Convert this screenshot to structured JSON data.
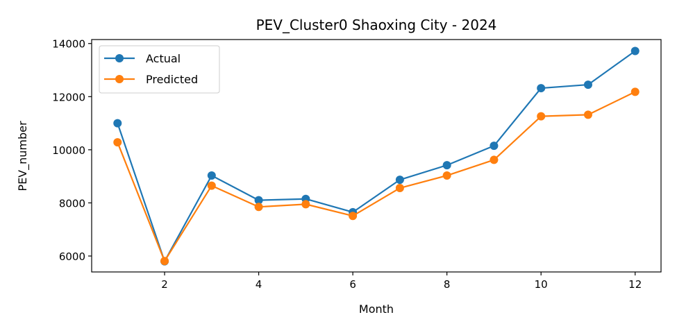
{
  "chart_data": {
    "type": "line",
    "title": "PEV_Cluster0 Shaoxing City - 2024",
    "xlabel": "Month",
    "ylabel": "PEV_number",
    "x": [
      1,
      2,
      3,
      4,
      5,
      6,
      7,
      8,
      9,
      10,
      11,
      12
    ],
    "xlim": [
      0.45,
      12.55
    ],
    "ylim": [
      5400,
      14150
    ],
    "xticks": [
      2,
      4,
      6,
      8,
      10,
      12
    ],
    "yticks": [
      6000,
      8000,
      10000,
      12000,
      14000
    ],
    "xtick_labels": [
      "2",
      "4",
      "6",
      "8",
      "10",
      "12"
    ],
    "ytick_labels": [
      "6000",
      "8000",
      "10000",
      "12000",
      "14000"
    ],
    "grid": false,
    "legend_position": "top-left",
    "series": [
      {
        "name": "Actual",
        "color": "#1f77b4",
        "marker": "circle",
        "values": [
          11000,
          5800,
          9030,
          8100,
          8150,
          7650,
          8870,
          9420,
          10150,
          12320,
          12450,
          13720
        ]
      },
      {
        "name": "Predicted",
        "color": "#ff7f0e",
        "marker": "circle",
        "values": [
          10280,
          5810,
          8650,
          7850,
          7950,
          7510,
          8560,
          9030,
          9620,
          11260,
          11320,
          12180
        ]
      }
    ]
  }
}
